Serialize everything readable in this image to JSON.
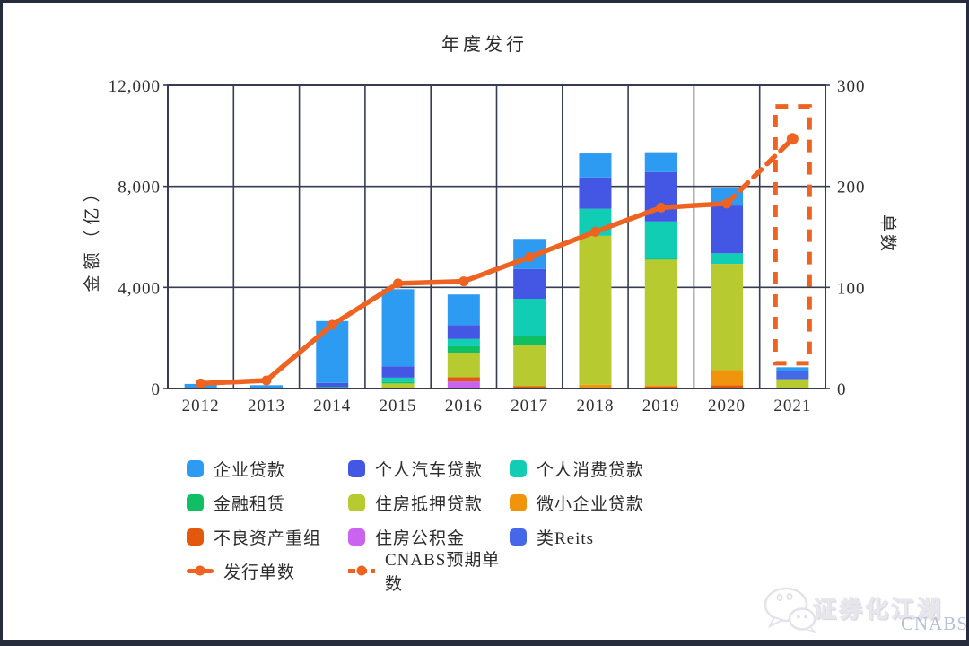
{
  "watermark": {
    "text": "证券化江湖",
    "brand": "CNABS"
  },
  "chart_data": {
    "type": "bar",
    "subtype": "stacked-bar-with-line",
    "title": "年度发行",
    "ylabel_left": "金额（亿）",
    "ylabel_right": "单数",
    "grid": true,
    "axis_left": {
      "min": 0,
      "max": 12000,
      "ticks": [
        {
          "value": 0,
          "label": "0"
        },
        {
          "value": 4000,
          "label": "4,000"
        },
        {
          "value": 8000,
          "label": "8,000"
        },
        {
          "value": 12000,
          "label": "12,000"
        }
      ]
    },
    "axis_right": {
      "min": 0,
      "max": 300,
      "ticks": [
        {
          "value": 0,
          "label": "0"
        },
        {
          "value": 100,
          "label": "100"
        },
        {
          "value": 200,
          "label": "200"
        },
        {
          "value": 300,
          "label": "300"
        }
      ]
    },
    "categories": [
      "2012",
      "2013",
      "2014",
      "2015",
      "2016",
      "2017",
      "2018",
      "2019",
      "2020",
      "2021"
    ],
    "bar_series": [
      {
        "name": "企业贷款",
        "color": "#2E9BF2",
        "values": [
          170,
          130,
          2450,
          3050,
          1210,
          1190,
          950,
          790,
          690,
          140
        ]
      },
      {
        "name": "个人汽车贷款",
        "color": "#4356E4",
        "values": [
          0,
          0,
          160,
          450,
          550,
          1180,
          1240,
          1950,
          1890,
          0
        ]
      },
      {
        "name": "个人消费贷款",
        "color": "#11CDB4",
        "values": [
          0,
          0,
          0,
          170,
          290,
          1480,
          1070,
          1480,
          420,
          0
        ]
      },
      {
        "name": "金融租赁",
        "color": "#10BE64",
        "values": [
          10,
          0,
          60,
          60,
          250,
          360,
          0,
          30,
          0,
          0
        ]
      },
      {
        "name": "住房抵押贷款",
        "color": "#B7CB30",
        "values": [
          0,
          0,
          0,
          200,
          970,
          1620,
          5890,
          4970,
          4200,
          370
        ]
      },
      {
        "name": "微小企业贷款",
        "color": "#F0930D",
        "values": [
          0,
          0,
          0,
          0,
          0,
          0,
          150,
          60,
          600,
          0
        ]
      },
      {
        "name": "不良资产重组",
        "color": "#E2580C",
        "values": [
          0,
          0,
          0,
          0,
          170,
          90,
          0,
          70,
          130,
          0
        ]
      },
      {
        "name": "住房公积金",
        "color": "#CA63F0",
        "values": [
          0,
          0,
          0,
          0,
          280,
          0,
          0,
          0,
          0,
          0
        ]
      },
      {
        "name": "类Reits",
        "color": "#4468E8",
        "values": [
          0,
          0,
          0,
          0,
          0,
          0,
          0,
          0,
          0,
          330
        ]
      }
    ],
    "stack_order": [
      "住房公积金",
      "不良资产重组",
      "微小企业贷款",
      "住房抵押贷款",
      "金融租赁",
      "个人消费贷款",
      "个人汽车贷款",
      "类Reits",
      "企业贷款"
    ],
    "line_series": {
      "name": "发行单数",
      "color": "#EE6321",
      "axis": "right",
      "values": [
        5,
        8,
        63,
        104,
        106,
        130,
        155,
        179,
        183,
        null
      ]
    },
    "forecast": {
      "name": "CNABS预期单数",
      "color": "#EE6321",
      "axis": "right",
      "category": "2021",
      "dot_value": 247,
      "box": {
        "bottom_value": 25,
        "top_value": 279
      }
    },
    "legend_position": "bottom"
  }
}
